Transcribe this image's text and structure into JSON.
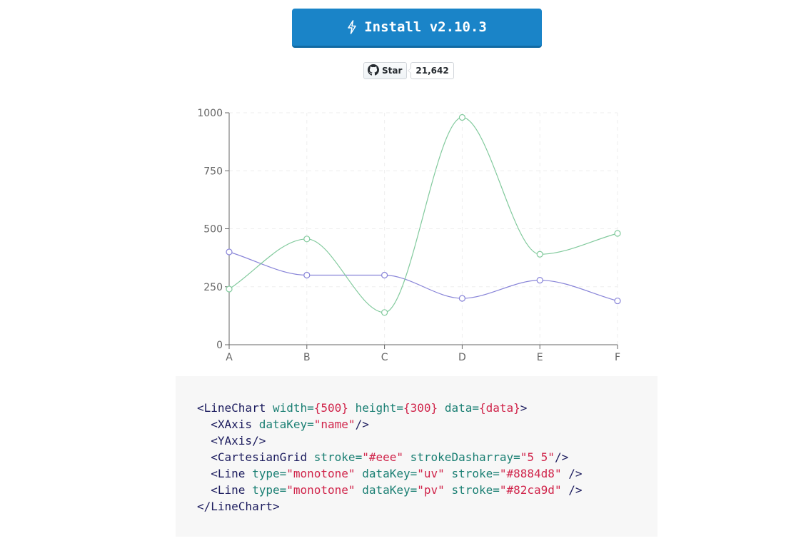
{
  "install_button": {
    "label": "Install v2.10.3",
    "icon": "lightning-bolt-icon"
  },
  "github_widget": {
    "star_label": "Star",
    "count": "21,642",
    "icon": "github-octocat-icon"
  },
  "chart_data": {
    "type": "line",
    "categories": [
      "A",
      "B",
      "C",
      "D",
      "E",
      "F"
    ],
    "series": [
      {
        "key": "uv",
        "color": "#8884d8",
        "values": [
          400,
          300,
          300,
          200,
          278,
          189
        ]
      },
      {
        "key": "pv",
        "color": "#82ca9d",
        "values": [
          240,
          456,
          139,
          980,
          390,
          480
        ]
      }
    ],
    "yticks": [
      0,
      250,
      500,
      750,
      1000
    ],
    "ylim": [
      0,
      1000
    ],
    "grid": true,
    "grid_color": "#eeeeee"
  },
  "code": {
    "lines": [
      [
        [
          "t-tag",
          "<LineChart "
        ],
        [
          "t-attr",
          "width="
        ],
        [
          "t-val",
          "{500}"
        ],
        [
          "t-tag",
          " "
        ],
        [
          "t-attr",
          "height="
        ],
        [
          "t-val",
          "{300}"
        ],
        [
          "t-tag",
          " "
        ],
        [
          "t-attr",
          "data="
        ],
        [
          "t-val",
          "{data}"
        ],
        [
          "t-tag",
          ">"
        ]
      ],
      [
        [
          "t-tag",
          "  <XAxis "
        ],
        [
          "t-attr",
          "dataKey="
        ],
        [
          "t-val",
          "\"name\""
        ],
        [
          "t-tag",
          "/>"
        ]
      ],
      [
        [
          "t-tag",
          "  <YAxis/>"
        ]
      ],
      [
        [
          "t-tag",
          "  <CartesianGrid "
        ],
        [
          "t-attr",
          "stroke="
        ],
        [
          "t-val",
          "\"#eee\""
        ],
        [
          "t-tag",
          " "
        ],
        [
          "t-attr",
          "strokeDasharray="
        ],
        [
          "t-val",
          "\"5 5\""
        ],
        [
          "t-tag",
          "/>"
        ]
      ],
      [
        [
          "t-tag",
          "  <Line "
        ],
        [
          "t-attr",
          "type="
        ],
        [
          "t-val",
          "\"monotone\""
        ],
        [
          "t-tag",
          " "
        ],
        [
          "t-attr",
          "dataKey="
        ],
        [
          "t-val",
          "\"uv\""
        ],
        [
          "t-tag",
          " "
        ],
        [
          "t-attr",
          "stroke="
        ],
        [
          "t-val",
          "\"#8884d8\""
        ],
        [
          "t-tag",
          " />"
        ]
      ],
      [
        [
          "t-tag",
          "  <Line "
        ],
        [
          "t-attr",
          "type="
        ],
        [
          "t-val",
          "\"monotone\""
        ],
        [
          "t-tag",
          " "
        ],
        [
          "t-attr",
          "dataKey="
        ],
        [
          "t-val",
          "\"pv\""
        ],
        [
          "t-tag",
          " "
        ],
        [
          "t-attr",
          "stroke="
        ],
        [
          "t-val",
          "\"#82ca9d\""
        ],
        [
          "t-tag",
          " />"
        ]
      ],
      [
        [
          "t-tag",
          "</LineChart>"
        ]
      ]
    ]
  }
}
